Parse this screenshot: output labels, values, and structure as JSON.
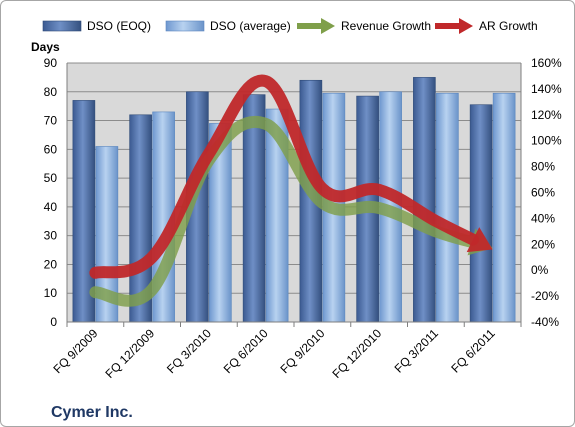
{
  "chart_data": {
    "type": "bar",
    "categories": [
      "FQ 9/2009",
      "FQ 12/2009",
      "FQ 3/2010",
      "FQ 6/2010",
      "FQ 9/2010",
      "FQ 12/2010",
      "FQ 3/2011",
      "FQ 6/2011"
    ],
    "series": [
      {
        "name": "DSO (EOQ)",
        "kind": "bar",
        "axis": "left",
        "color": "#4f6fa8",
        "values": [
          77,
          72,
          80,
          79,
          84,
          78.5,
          85,
          75.5
        ]
      },
      {
        "name": "DSO (average)",
        "kind": "bar",
        "axis": "left",
        "color": "#8fb4e3",
        "values": [
          61,
          73,
          69,
          74,
          79.5,
          80,
          79.5,
          79.5
        ]
      },
      {
        "name": "Revenue Growth",
        "kind": "arrow-line",
        "axis": "right",
        "color": "#7f9f4a",
        "values": [
          -17,
          -15,
          85,
          113,
          52,
          48,
          30,
          17
        ]
      },
      {
        "name": "AR Growth",
        "kind": "arrow-line",
        "axis": "right",
        "color": "#c0282a",
        "values": [
          -2,
          10,
          90,
          146,
          63,
          62,
          38,
          16
        ]
      }
    ],
    "y_left": {
      "label": "Days",
      "min": 0,
      "max": 90,
      "ticks": [
        "0",
        "10",
        "20",
        "30",
        "40",
        "50",
        "60",
        "70",
        "80",
        "90"
      ]
    },
    "y_right": {
      "min": -40,
      "max": 160,
      "ticks": [
        "-40%",
        "-20%",
        "0%",
        "20%",
        "40%",
        "60%",
        "80%",
        "100%",
        "120%",
        "140%",
        "160%"
      ]
    },
    "grid": true,
    "legend_position": "top",
    "plot_background": "#d9d9d9"
  },
  "footer": {
    "company": "Cymer Inc."
  }
}
